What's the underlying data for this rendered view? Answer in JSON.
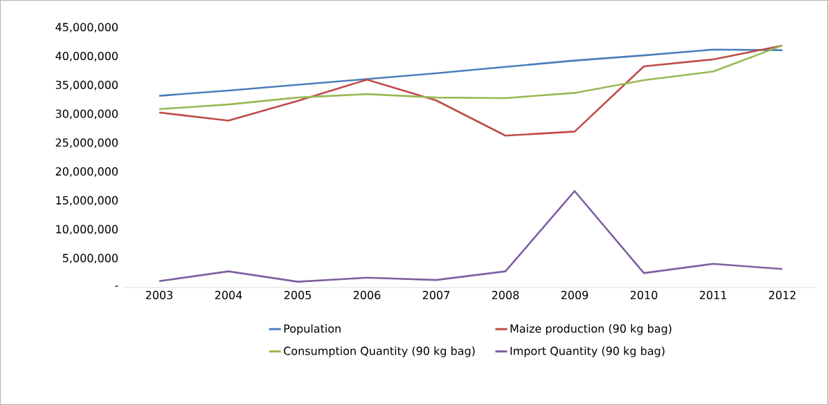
{
  "chart_data": {
    "type": "line",
    "categories": [
      "2003",
      "2004",
      "2005",
      "2006",
      "2007",
      "2008",
      "2009",
      "2010",
      "2011",
      "2012"
    ],
    "series": [
      {
        "name": "Population",
        "color": "#4a7ebb",
        "values": [
          33200000,
          34100000,
          35100000,
          36100000,
          37100000,
          38200000,
          39300000,
          40200000,
          41200000,
          41100000
        ]
      },
      {
        "name": "Maize production (90 kg bag)",
        "color": "#be4b48",
        "values": [
          30300000,
          28900000,
          32300000,
          36000000,
          32400000,
          26300000,
          27000000,
          38300000,
          39500000,
          41900000
        ]
      },
      {
        "name": "Consumption Quantity (90 kg bag)",
        "color": "#98b954",
        "values": [
          30900000,
          31700000,
          32900000,
          33500000,
          32900000,
          32800000,
          33700000,
          35900000,
          37400000,
          41900000
        ]
      },
      {
        "name": "Import Quantity (90 kg bag)",
        "color": "#7d60a0",
        "values": [
          1100000,
          2800000,
          1000000,
          1700000,
          1300000,
          2800000,
          16700000,
          2500000,
          4100000,
          3200000
        ]
      }
    ],
    "ylim": [
      0,
      45000000
    ],
    "yticks": [
      {
        "value": 0,
        "label": "-"
      },
      {
        "value": 5000000,
        "label": "5,000,000"
      },
      {
        "value": 10000000,
        "label": "10,000,000"
      },
      {
        "value": 15000000,
        "label": "15,000,000"
      },
      {
        "value": 20000000,
        "label": "20,000,000"
      },
      {
        "value": 25000000,
        "label": "25,000,000"
      },
      {
        "value": 30000000,
        "label": "30,000,000"
      },
      {
        "value": 35000000,
        "label": "35,000,000"
      },
      {
        "value": 40000000,
        "label": "40,000,000"
      },
      {
        "value": 45000000,
        "label": "45,000,000"
      }
    ],
    "grid": false,
    "legend": "bottom",
    "marker": "none",
    "line_style": "solid"
  }
}
